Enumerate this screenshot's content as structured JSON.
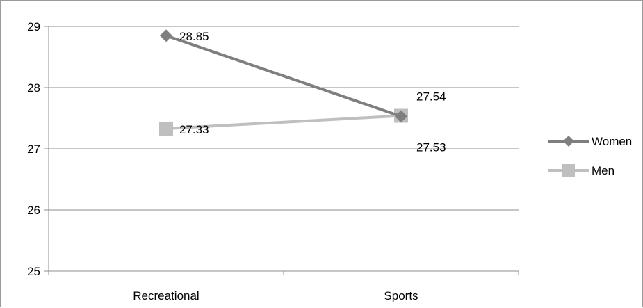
{
  "chart_data": {
    "type": "line",
    "categories": [
      "Recreational",
      "Sports"
    ],
    "series": [
      {
        "name": "Women",
        "values": [
          28.85,
          27.53
        ],
        "color": "#7f7f7f",
        "marker": "diamond",
        "labels": [
          "28.85",
          "27.53"
        ]
      },
      {
        "name": "Men",
        "values": [
          27.33,
          27.54
        ],
        "color": "#bfbfbf",
        "marker": "square",
        "labels": [
          "27.33",
          "27.54"
        ]
      }
    ],
    "ylim": [
      25,
      29
    ],
    "yticks": [
      "25",
      "26",
      "27",
      "28",
      "29"
    ],
    "title": "",
    "xlabel": "",
    "ylabel": "",
    "grid": "horizontal",
    "legend_position": "right"
  }
}
